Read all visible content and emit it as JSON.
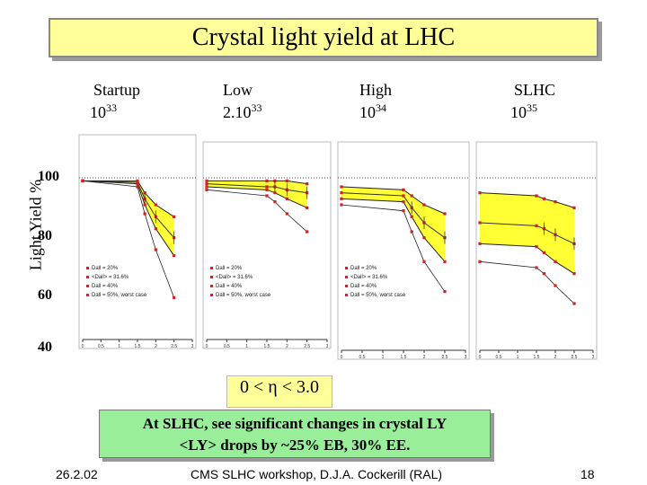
{
  "slide": {
    "title": "Crystal light yield at LHC",
    "ylabel": "Light Yield %",
    "y_ticks": [
      "100",
      "80",
      "60",
      "40"
    ],
    "eta_range": "0 < η < 3.0",
    "note_line1": "At SLHC, see significant changes in crystal LY",
    "note_line2": "<LY> drops by ~25% EB, 30% EE."
  },
  "columns": [
    {
      "name": "Startup",
      "lumi_base": "10",
      "lumi_exp": "33"
    },
    {
      "name": "Low",
      "lumi_base": "2.10",
      "lumi_exp": "33"
    },
    {
      "name": "High",
      "lumi_base": "10",
      "lumi_exp": "34"
    },
    {
      "name": "SLHC",
      "lumi_base": "10",
      "lumi_exp": "35"
    }
  ],
  "footer": {
    "date": "26.2.02",
    "event": "CMS SLHC workshop, D.J.A. Cockerill (RAL)",
    "page": "18"
  },
  "panel_legend": {
    "entries": [
      "Dall = 20%",
      "<Dall> = 31.6%",
      "Dall = 40%",
      "Dall = 50%, worst case"
    ],
    "x_ticks": [
      "0",
      "0.5",
      "1",
      "1.5",
      "2",
      "2.5",
      "3"
    ],
    "x_label": "Eta"
  },
  "colors": {
    "band": "#ffff33",
    "marker": "#cc2222",
    "title_bg": "#ffff99",
    "note_bg": "#99ee99"
  },
  "chart_data": [
    {
      "type": "line",
      "title": "Startup 10^33",
      "x": [
        0,
        1.5,
        1.7,
        2.0,
        2.5
      ],
      "series": [
        {
          "name": "Dall = 20%",
          "values": [
            99,
            99,
            95,
            91,
            87
          ]
        },
        {
          "name": "<Dall> = 31.6%",
          "values": [
            99,
            98.5,
            93,
            87,
            80
          ]
        },
        {
          "name": "Dall = 40%",
          "values": [
            99,
            98,
            91,
            83,
            74
          ]
        },
        {
          "name": "Dall = 50%, worst case",
          "values": [
            99,
            97,
            88,
            76,
            60
          ]
        }
      ]
    },
    {
      "type": "line",
      "title": "Low 2.10^33",
      "x": [
        0,
        1.5,
        1.7,
        2.0,
        2.5
      ],
      "series": [
        {
          "name": "Dall = 20%",
          "values": [
            99,
            99,
            99,
            99,
            98
          ]
        },
        {
          "name": "<Dall> = 31.6%",
          "values": [
            98,
            97,
            97,
            96,
            95
          ]
        },
        {
          "name": "Dall = 40%",
          "values": [
            97,
            96,
            95,
            93,
            90
          ]
        },
        {
          "name": "Dall = 50%, worst case",
          "values": [
            96,
            94,
            92,
            88,
            82
          ]
        }
      ]
    },
    {
      "type": "line",
      "title": "High 10^34",
      "x": [
        0,
        1.5,
        1.7,
        2.0,
        2.5
      ],
      "series": [
        {
          "name": "Dall = 20%",
          "values": [
            97,
            96,
            94,
            91,
            88
          ]
        },
        {
          "name": "<Dall> = 31.6%",
          "values": [
            95,
            94,
            90,
            85,
            80
          ]
        },
        {
          "name": "Dall = 40%",
          "values": [
            93,
            92,
            87,
            80,
            72
          ]
        },
        {
          "name": "Dall = 50%, worst case",
          "values": [
            91,
            89,
            82,
            72,
            62
          ]
        }
      ]
    },
    {
      "type": "line",
      "title": "SLHC 10^35",
      "x": [
        0,
        1.5,
        1.7,
        2.0,
        2.5
      ],
      "series": [
        {
          "name": "Dall = 20%",
          "values": [
            95,
            94,
            93,
            92,
            90
          ]
        },
        {
          "name": "<Dall> = 31.6%",
          "values": [
            85,
            84,
            83,
            81,
            78
          ]
        },
        {
          "name": "Dall = 40%",
          "values": [
            78,
            77,
            75,
            72,
            68
          ]
        },
        {
          "name": "Dall = 50%, worst case",
          "values": [
            72,
            70,
            68,
            64,
            58
          ]
        }
      ]
    }
  ]
}
